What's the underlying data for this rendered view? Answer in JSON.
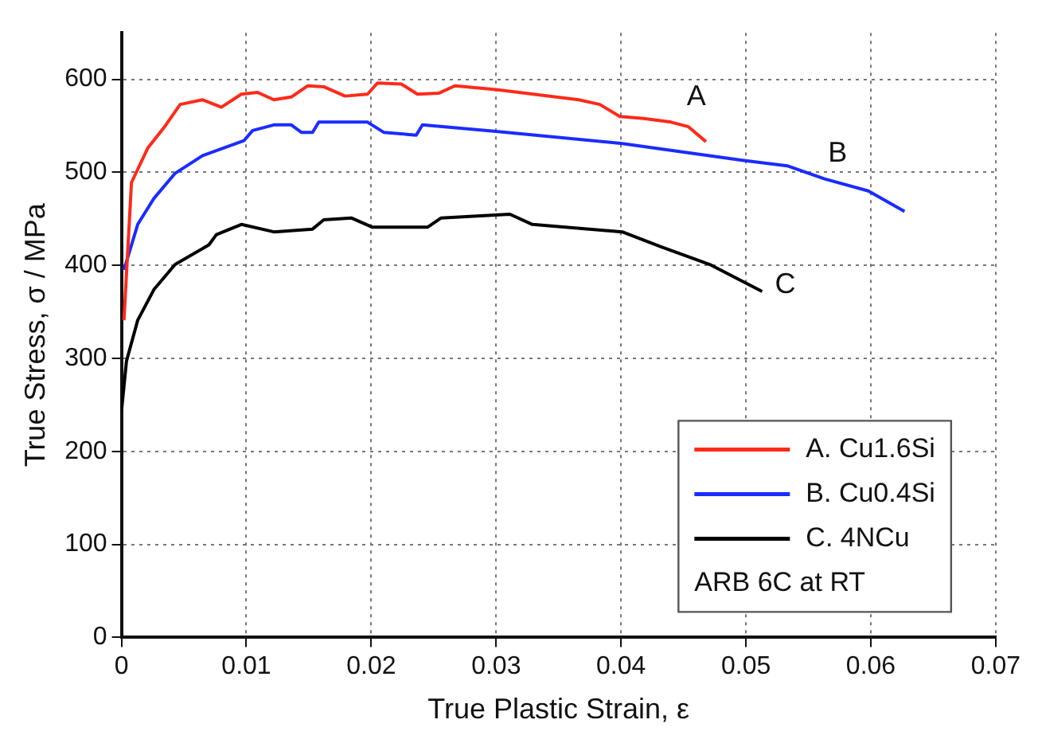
{
  "chart_data": {
    "type": "line",
    "xlabel": "True Plastic Strain, ε",
    "ylabel": "True Stress, σ / MPa",
    "xlim": [
      0,
      0.07
    ],
    "xticks": [
      0,
      0.01,
      0.02,
      0.03,
      0.04,
      0.05,
      0.06,
      0.07
    ],
    "ylim": [
      0,
      650
    ],
    "yticks": [
      0,
      100,
      200,
      300,
      400,
      500,
      600
    ],
    "grid": true,
    "legend": "bottom right",
    "marker": "none",
    "line_style": "solid",
    "annotations": [
      "A",
      "B",
      "C",
      "ARB 6C at RT"
    ],
    "series": [
      {
        "name": "A. Cu1.6Si",
        "color": "#ff2a1a",
        "x": [
          0.0002,
          0.0008,
          0.0021,
          0.0034,
          0.0047,
          0.0065,
          0.008,
          0.0096,
          0.0109,
          0.0122,
          0.0136,
          0.0149,
          0.0162,
          0.0179,
          0.0197,
          0.0205,
          0.0224,
          0.0237,
          0.0254,
          0.0267,
          0.03,
          0.0366,
          0.0383,
          0.0399,
          0.0418,
          0.044,
          0.0454,
          0.0468
        ],
        "values": [
          341,
          489,
          526,
          548,
          573,
          578,
          570,
          584,
          586,
          578,
          581,
          593,
          592,
          582,
          584,
          596,
          595,
          584,
          585,
          593,
          589,
          578,
          573,
          560,
          558,
          554,
          549,
          533
        ]
      },
      {
        "name": "B. Cu0.4Si",
        "color": "#1a2cff",
        "x": [
          0.0002,
          0.0013,
          0.0026,
          0.0043,
          0.0065,
          0.0098,
          0.0105,
          0.0122,
          0.0136,
          0.0144,
          0.0153,
          0.0158,
          0.0197,
          0.021,
          0.0236,
          0.0241,
          0.03,
          0.0401,
          0.0497,
          0.0533,
          0.0563,
          0.0598,
          0.0627
        ],
        "values": [
          395,
          444,
          472,
          499,
          518,
          534,
          545,
          551,
          551,
          543,
          543,
          554,
          554,
          543,
          540,
          551,
          544,
          531,
          513,
          507,
          493,
          480,
          458
        ]
      },
      {
        "name": "C. 4NCu",
        "color": "#000000",
        "x": [
          0,
          0.0004,
          0.0013,
          0.0026,
          0.0043,
          0.007,
          0.0076,
          0.0096,
          0.0122,
          0.0153,
          0.0162,
          0.0184,
          0.0201,
          0.0245,
          0.0256,
          0.0311,
          0.0329,
          0.0401,
          0.0432,
          0.0471,
          0.0513
        ],
        "values": [
          243,
          297,
          341,
          374,
          401,
          422,
          433,
          444,
          436,
          439,
          449,
          451,
          441,
          441,
          451,
          455,
          444,
          436,
          420,
          401,
          372
        ]
      }
    ]
  }
}
